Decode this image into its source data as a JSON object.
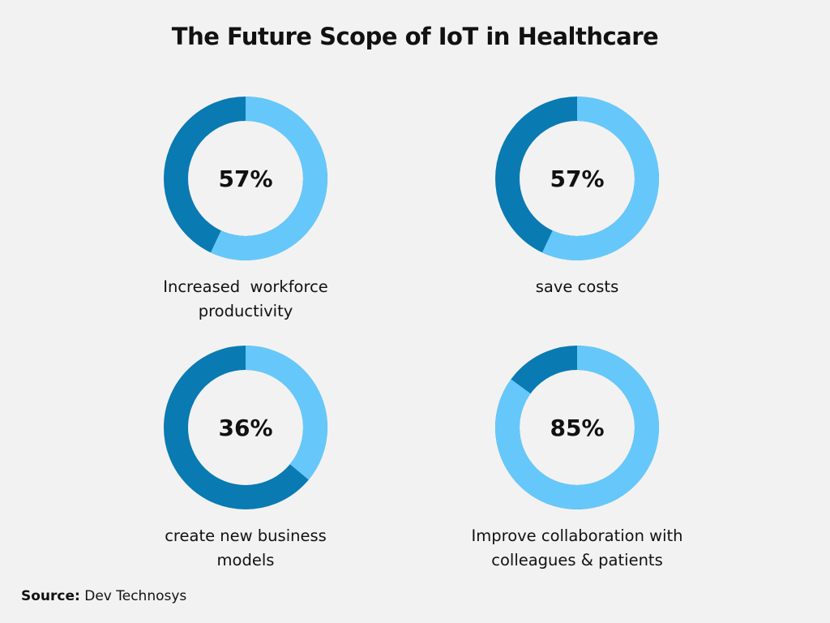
{
  "chart_data": {
    "type": "donut",
    "title": "The Future Scope of IoT in Healthcare",
    "colors": {
      "value": "#66c8fa",
      "remainder": "#0a7ab2",
      "background": "#f2f2f2"
    },
    "items": [
      {
        "value": 57,
        "display": "57%",
        "label_lines": [
          "Increased  workforce",
          "productivity"
        ]
      },
      {
        "value": 57,
        "display": "57%",
        "label_lines": [
          "save costs"
        ]
      },
      {
        "value": 36,
        "display": "36%",
        "label_lines": [
          "create new business",
          "models"
        ]
      },
      {
        "value": 85,
        "display": "85%",
        "label_lines": [
          "Improve collaboration with",
          "colleagues & patients"
        ]
      }
    ],
    "source_label": "Source:",
    "source": "Dev Technosys"
  }
}
